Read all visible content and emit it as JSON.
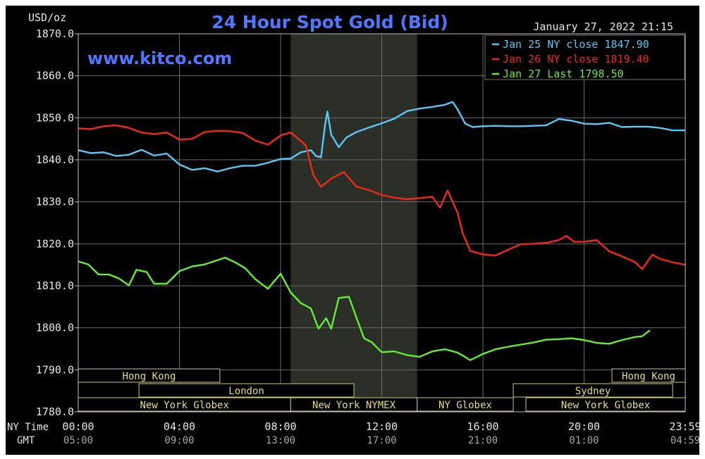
{
  "chart_data": {
    "type": "line",
    "title": "24 Hour Spot Gold (Bid)",
    "watermark": "www.kitco.com",
    "timestamp": "January 27, 2022 21:15",
    "ylabel": "USD/oz",
    "ylim": [
      1780,
      1870
    ],
    "xlim": [
      0,
      24
    ],
    "y_ticks": [
      {
        "label": "1870.0",
        "v": 1870
      },
      {
        "label": "1860.0",
        "v": 1860
      },
      {
        "label": "1850.0",
        "v": 1850
      },
      {
        "label": "1840.0",
        "v": 1840
      },
      {
        "label": "1830.0",
        "v": 1830
      },
      {
        "label": "1820.0",
        "v": 1820
      },
      {
        "label": "1810.0",
        "v": 1810
      },
      {
        "label": "1800.0",
        "v": 1800
      },
      {
        "label": "1790.0",
        "v": 1790
      },
      {
        "label": "1780.0",
        "v": 1780
      }
    ],
    "x_ticks": [
      {
        "ny": "00:00",
        "gmt": "05:00",
        "t": 0
      },
      {
        "ny": "04:00",
        "gmt": "09:00",
        "t": 4
      },
      {
        "ny": "08:00",
        "gmt": "13:00",
        "t": 8
      },
      {
        "ny": "12:00",
        "gmt": "17:00",
        "t": 12
      },
      {
        "ny": "16:00",
        "gmt": "21:00",
        "t": 16
      },
      {
        "ny": "20:00",
        "gmt": "01:00",
        "t": 20
      },
      {
        "ny": "23:59",
        "gmt": "04:59",
        "t": 24
      }
    ],
    "x_row_labels": {
      "ny": "NY Time",
      "gmt": "GMT"
    },
    "grid": true,
    "shaded_session": {
      "start": 8.4,
      "end": 13.4
    },
    "legend_placement": "top-right",
    "series": [
      {
        "name": "Jan 25 NY close 1847.90",
        "color": "#5bc8f5",
        "points": [
          [
            0,
            1842.3
          ],
          [
            0.5,
            1841.6
          ],
          [
            1,
            1841.8
          ],
          [
            1.5,
            1840.9
          ],
          [
            2,
            1841.2
          ],
          [
            2.5,
            1842.4
          ],
          [
            3,
            1841.0
          ],
          [
            3.5,
            1841.5
          ],
          [
            4,
            1838.9
          ],
          [
            4.5,
            1837.6
          ],
          [
            5,
            1838.0
          ],
          [
            5.5,
            1837.2
          ],
          [
            6,
            1838.0
          ],
          [
            6.5,
            1838.6
          ],
          [
            7,
            1838.6
          ],
          [
            7.5,
            1839.3
          ],
          [
            8,
            1840.2
          ],
          [
            8.4,
            1840.3
          ],
          [
            8.8,
            1841.8
          ],
          [
            9.2,
            1842.3
          ],
          [
            9.4,
            1840.9
          ],
          [
            9.6,
            1840.6
          ],
          [
            9.75,
            1848.0
          ],
          [
            9.85,
            1851.5
          ],
          [
            10,
            1846.0
          ],
          [
            10.3,
            1843.0
          ],
          [
            10.6,
            1845.3
          ],
          [
            11,
            1846.6
          ],
          [
            11.5,
            1847.7
          ],
          [
            12,
            1848.7
          ],
          [
            12.5,
            1849.8
          ],
          [
            13,
            1851.6
          ],
          [
            13.5,
            1852.2
          ],
          [
            14,
            1852.6
          ],
          [
            14.5,
            1853.1
          ],
          [
            14.8,
            1853.8
          ],
          [
            15,
            1852.0
          ],
          [
            15.3,
            1848.6
          ],
          [
            15.6,
            1847.8
          ],
          [
            16,
            1848.0
          ],
          [
            16.5,
            1848.1
          ],
          [
            17,
            1848.0
          ],
          [
            17.5,
            1848.0
          ],
          [
            18,
            1848.1
          ],
          [
            18.5,
            1848.2
          ],
          [
            19,
            1849.7
          ],
          [
            19.5,
            1849.3
          ],
          [
            20,
            1848.6
          ],
          [
            20.5,
            1848.5
          ],
          [
            21,
            1848.8
          ],
          [
            21.5,
            1847.8
          ],
          [
            22,
            1847.9
          ],
          [
            22.5,
            1847.9
          ],
          [
            23,
            1847.6
          ],
          [
            23.5,
            1847.0
          ],
          [
            24,
            1847.0
          ]
        ]
      },
      {
        "name": "Jan 26 NY close 1819.40",
        "color": "#f02a18",
        "points": [
          [
            0,
            1847.5
          ],
          [
            0.5,
            1847.3
          ],
          [
            1,
            1848.0
          ],
          [
            1.5,
            1848.2
          ],
          [
            2,
            1847.6
          ],
          [
            2.5,
            1846.5
          ],
          [
            3,
            1846.1
          ],
          [
            3.5,
            1846.5
          ],
          [
            4,
            1844.8
          ],
          [
            4.5,
            1845.0
          ],
          [
            5,
            1846.6
          ],
          [
            5.5,
            1846.9
          ],
          [
            6,
            1846.8
          ],
          [
            6.5,
            1846.4
          ],
          [
            7,
            1844.6
          ],
          [
            7.5,
            1843.6
          ],
          [
            8,
            1845.8
          ],
          [
            8.4,
            1846.5
          ],
          [
            8.7,
            1845.0
          ],
          [
            9,
            1843.4
          ],
          [
            9.3,
            1836.3
          ],
          [
            9.6,
            1833.6
          ],
          [
            10,
            1835.5
          ],
          [
            10.5,
            1837.1
          ],
          [
            11,
            1833.6
          ],
          [
            11.5,
            1832.8
          ],
          [
            12,
            1831.6
          ],
          [
            12.5,
            1831.0
          ],
          [
            13,
            1830.6
          ],
          [
            13.5,
            1830.9
          ],
          [
            14,
            1831.2
          ],
          [
            14.3,
            1828.6
          ],
          [
            14.6,
            1832.7
          ],
          [
            15,
            1827.4
          ],
          [
            15.2,
            1822.5
          ],
          [
            15.5,
            1818.3
          ],
          [
            16,
            1817.5
          ],
          [
            16.5,
            1817.2
          ],
          [
            17,
            1818.6
          ],
          [
            17.5,
            1819.9
          ],
          [
            18,
            1820.0
          ],
          [
            18.5,
            1820.2
          ],
          [
            19,
            1820.9
          ],
          [
            19.3,
            1821.9
          ],
          [
            19.6,
            1820.5
          ],
          [
            20,
            1820.5
          ],
          [
            20.5,
            1820.9
          ],
          [
            21,
            1818.2
          ],
          [
            21.5,
            1817.0
          ],
          [
            22,
            1815.7
          ],
          [
            22.3,
            1814.0
          ],
          [
            22.7,
            1817.4
          ],
          [
            23,
            1816.4
          ],
          [
            23.5,
            1815.6
          ],
          [
            24,
            1815.0
          ]
        ]
      },
      {
        "name": "Jan 27 Last 1798.50",
        "color": "#66ee33",
        "points": [
          [
            0,
            1815.8
          ],
          [
            0.4,
            1815.1
          ],
          [
            0.8,
            1812.7
          ],
          [
            1.2,
            1812.7
          ],
          [
            1.6,
            1811.8
          ],
          [
            2,
            1810.1
          ],
          [
            2.3,
            1813.8
          ],
          [
            2.7,
            1813.3
          ],
          [
            3,
            1810.5
          ],
          [
            3.5,
            1810.5
          ],
          [
            4,
            1813.5
          ],
          [
            4.5,
            1814.6
          ],
          [
            5,
            1815.1
          ],
          [
            5.5,
            1816.1
          ],
          [
            5.8,
            1816.7
          ],
          [
            6.2,
            1815.6
          ],
          [
            6.6,
            1814.2
          ],
          [
            7,
            1811.6
          ],
          [
            7.5,
            1809.3
          ],
          [
            8,
            1812.9
          ],
          [
            8.4,
            1808.4
          ],
          [
            8.8,
            1805.9
          ],
          [
            9.2,
            1804.6
          ],
          [
            9.5,
            1799.8
          ],
          [
            9.8,
            1802.3
          ],
          [
            10,
            1799.8
          ],
          [
            10.3,
            1807.1
          ],
          [
            10.7,
            1807.4
          ],
          [
            11,
            1802.4
          ],
          [
            11.3,
            1797.5
          ],
          [
            11.6,
            1796.6
          ],
          [
            12,
            1794.2
          ],
          [
            12.5,
            1794.4
          ],
          [
            13,
            1793.5
          ],
          [
            13.5,
            1793.1
          ],
          [
            14,
            1794.4
          ],
          [
            14.5,
            1794.9
          ],
          [
            15,
            1794.1
          ],
          [
            15.5,
            1792.3
          ],
          [
            16,
            1793.8
          ],
          [
            16.5,
            1794.9
          ],
          [
            17,
            1795.5
          ],
          [
            17.5,
            1796.0
          ],
          [
            18,
            1796.5
          ],
          [
            18.5,
            1797.2
          ],
          [
            19,
            1797.3
          ],
          [
            19.5,
            1797.5
          ],
          [
            20,
            1797.1
          ],
          [
            20.5,
            1796.4
          ],
          [
            21,
            1796.2
          ],
          [
            21.5,
            1797.1
          ],
          [
            22,
            1797.8
          ],
          [
            22.3,
            1798.0
          ],
          [
            22.6,
            1799.4
          ]
        ]
      }
    ],
    "sessions": [
      {
        "label": "Hong Kong",
        "start": 0,
        "end": 5.6,
        "row": 0
      },
      {
        "label": "Hong Kong",
        "start": 21.1,
        "end": 24,
        "row": 0
      },
      {
        "label": "London",
        "start": 2.4,
        "end": 10.9,
        "row": 1
      },
      {
        "label": "Sydney",
        "start": 17.2,
        "end": 23.5,
        "row": 1
      },
      {
        "label": "New York Globex",
        "start": 0,
        "end": 8.4,
        "row": 2
      },
      {
        "label": "New York NYMEX",
        "start": 8.4,
        "end": 13.4,
        "row": 2
      },
      {
        "label": "NY Globex",
        "start": 13.4,
        "end": 17.2,
        "row": 2
      },
      {
        "label": "New York Globex",
        "start": 17.7,
        "end": 24,
        "row": 2
      }
    ]
  }
}
